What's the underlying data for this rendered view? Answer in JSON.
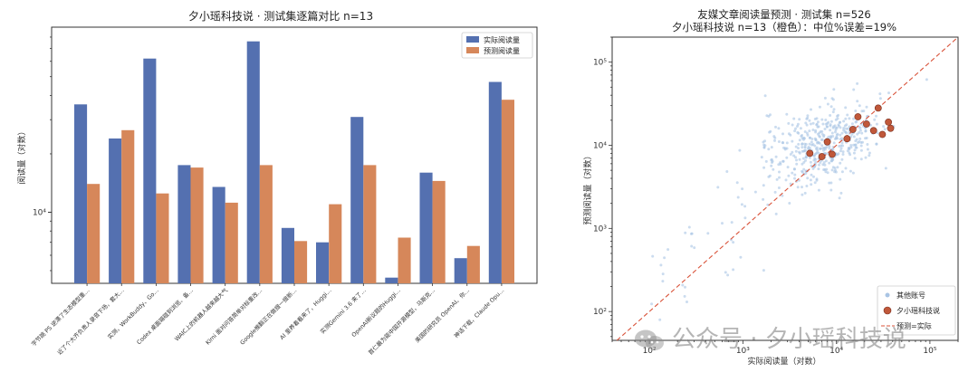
{
  "chart_data": [
    {
      "type": "bar",
      "title": "夕小瑶科技说 · 测试集逐篇对比 n=13",
      "ylabel": "阅读量（对数）",
      "yscale": "log",
      "ylim": [
        4300,
        90000
      ],
      "ytick_labels": [
        {
          "value": 10000,
          "label": "10⁴"
        }
      ],
      "legend_position": "top-right",
      "categories": [
        "字节跳 PS 逆漂了生态模型重…",
        "近了个大齐负责人录音下场，套大…",
        "实测，WorkBuddy、Go…",
        "Codex 桌面端碰到浏览、备…",
        "WAIC上的机器人越来越大气",
        "Kimi 面对问答简单对标重改…",
        "Google推翻正在做搜一搜新…",
        "AI 里养着看来了，Huggi…",
        "实测Gemini 3.6 来了…",
        "OpenAI新议题的Huggi…",
        "首仁最为能中国开源模型，马斯克…",
        "美国的研究员 OpenAI、你…",
        "神话下载，Claude Opu…"
      ],
      "series": [
        {
          "name": "实际阅读量",
          "color": "#5470b0",
          "values": [
            36000,
            24000,
            62000,
            17500,
            13500,
            76000,
            8300,
            7000,
            31000,
            4600,
            16000,
            5800,
            47000
          ]
        },
        {
          "name": "预测阅读量",
          "color": "#d6875a",
          "values": [
            14000,
            26500,
            12500,
            17000,
            11200,
            17500,
            7100,
            11000,
            17500,
            7400,
            14500,
            6700,
            38000
          ]
        }
      ]
    },
    {
      "type": "scatter",
      "title": "友媒文章阅读量预测 · 测试集 n=526",
      "subtitle": "夕小瑶科技说 n=13（橙色）：中位%误差=19%",
      "xlabel": "实际阅读量（对数）",
      "ylabel": "预测阅读量（对数）",
      "xscale": "log",
      "yscale": "log",
      "xlim": [
        40,
        200000
      ],
      "ylim": [
        45,
        200000
      ],
      "xtick_labels": [
        {
          "value": 100,
          "label": "10²"
        },
        {
          "value": 1000,
          "label": "10³"
        },
        {
          "value": 10000,
          "label": "10⁴"
        },
        {
          "value": 100000,
          "label": "10⁵"
        }
      ],
      "ytick_labels": [
        {
          "value": 100,
          "label": "10²"
        },
        {
          "value": 1000,
          "label": "10³"
        },
        {
          "value": 10000,
          "label": "10⁴"
        },
        {
          "value": 100000,
          "label": "10⁵"
        }
      ],
      "legend_position": "bottom-right",
      "series": [
        {
          "name": "其他账号",
          "color": "#a9c4e4",
          "points": "many light points concentrated around 3e3–6e4 actual"
        },
        {
          "name": "夕小瑶科技说",
          "color": "#c0583a",
          "points": [
            [
              5200,
              8000
            ],
            [
              7000,
              7300
            ],
            [
              8000,
              11000
            ],
            [
              9000,
              7800
            ],
            [
              13000,
              12000
            ],
            [
              15000,
              15500
            ],
            [
              17000,
              22000
            ],
            [
              21000,
              18000
            ],
            [
              25000,
              15000
            ],
            [
              28000,
              28000
            ],
            [
              31000,
              13500
            ],
            [
              36000,
              19000
            ],
            [
              38000,
              16000
            ]
          ]
        },
        {
          "name": "预测=实际",
          "color": "#d9533a",
          "style": "dashed"
        }
      ]
    }
  ],
  "watermark": "公众号 · 夕小瑶科技说"
}
